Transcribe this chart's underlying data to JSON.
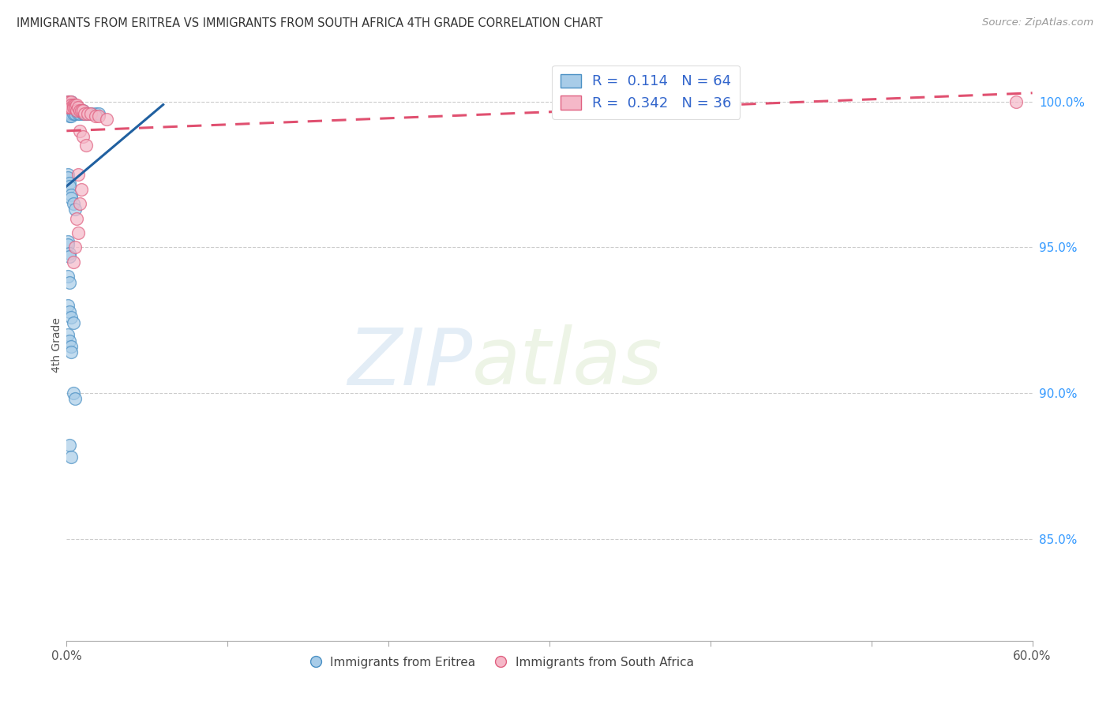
{
  "title": "IMMIGRANTS FROM ERITREA VS IMMIGRANTS FROM SOUTH AFRICA 4TH GRADE CORRELATION CHART",
  "source": "Source: ZipAtlas.com",
  "ylabel": "4th Grade",
  "ylabel_tick_vals": [
    1.0,
    0.95,
    0.9,
    0.85
  ],
  "ylabel_tick_labels": [
    "100.0%",
    "95.0%",
    "90.0%",
    "85.0%"
  ],
  "xlim": [
    0.0,
    0.6
  ],
  "ylim": [
    0.815,
    1.018
  ],
  "blue_color": "#a8cce8",
  "pink_color": "#f5b8c8",
  "blue_edge_color": "#4a90c4",
  "pink_edge_color": "#e06080",
  "blue_line_color": "#2060a0",
  "pink_line_color": "#e05070",
  "grid_color": "#cccccc",
  "tick_color": "#3399ff",
  "blue_scatter_x": [
    0.001,
    0.001,
    0.001,
    0.001,
    0.002,
    0.002,
    0.002,
    0.002,
    0.002,
    0.002,
    0.003,
    0.003,
    0.003,
    0.003,
    0.003,
    0.003,
    0.004,
    0.004,
    0.004,
    0.004,
    0.005,
    0.005,
    0.005,
    0.006,
    0.006,
    0.007,
    0.007,
    0.008,
    0.008,
    0.009,
    0.01,
    0.01,
    0.011,
    0.012,
    0.013,
    0.015,
    0.018,
    0.02,
    0.001,
    0.001,
    0.002,
    0.002,
    0.003,
    0.003,
    0.004,
    0.005,
    0.001,
    0.001,
    0.002,
    0.002,
    0.001,
    0.002,
    0.001,
    0.002,
    0.003,
    0.004,
    0.001,
    0.002,
    0.003,
    0.003,
    0.004,
    0.005,
    0.002,
    0.003
  ],
  "blue_scatter_y": [
    1.0,
    0.999,
    0.998,
    0.997,
    1.0,
    0.999,
    0.998,
    0.997,
    0.996,
    0.995,
    1.0,
    0.999,
    0.998,
    0.997,
    0.996,
    0.995,
    0.999,
    0.998,
    0.997,
    0.996,
    0.998,
    0.997,
    0.996,
    0.998,
    0.997,
    0.997,
    0.996,
    0.997,
    0.996,
    0.997,
    0.997,
    0.996,
    0.996,
    0.996,
    0.996,
    0.996,
    0.996,
    0.996,
    0.975,
    0.974,
    0.972,
    0.971,
    0.968,
    0.967,
    0.965,
    0.963,
    0.952,
    0.951,
    0.948,
    0.947,
    0.94,
    0.938,
    0.93,
    0.928,
    0.926,
    0.924,
    0.92,
    0.918,
    0.916,
    0.914,
    0.9,
    0.898,
    0.882,
    0.878
  ],
  "pink_scatter_x": [
    0.001,
    0.001,
    0.001,
    0.002,
    0.002,
    0.002,
    0.003,
    0.003,
    0.003,
    0.004,
    0.004,
    0.005,
    0.005,
    0.006,
    0.006,
    0.007,
    0.008,
    0.009,
    0.01,
    0.011,
    0.013,
    0.015,
    0.018,
    0.02,
    0.025,
    0.008,
    0.01,
    0.012,
    0.007,
    0.009,
    0.008,
    0.006,
    0.007,
    0.005,
    0.004,
    0.59
  ],
  "pink_scatter_y": [
    1.0,
    0.999,
    0.998,
    1.0,
    0.999,
    0.998,
    1.0,
    0.999,
    0.998,
    0.999,
    0.998,
    0.999,
    0.998,
    0.999,
    0.997,
    0.998,
    0.997,
    0.997,
    0.997,
    0.996,
    0.996,
    0.996,
    0.995,
    0.995,
    0.994,
    0.99,
    0.988,
    0.985,
    0.975,
    0.97,
    0.965,
    0.96,
    0.955,
    0.95,
    0.945,
    1.0
  ],
  "blue_trend_x": [
    0.0,
    0.06
  ],
  "blue_trend_y": [
    0.971,
    0.999
  ],
  "pink_trend_x": [
    0.0,
    0.6
  ],
  "pink_trend_y": [
    0.99,
    1.003
  ],
  "watermark_zip": "ZIP",
  "watermark_atlas": "atlas",
  "legend1_label": "R =  0.114   N = 64",
  "legend2_label": "R =  0.342   N = 36",
  "bottom_label1": "Immigrants from Eritrea",
  "bottom_label2": "Immigrants from South Africa"
}
